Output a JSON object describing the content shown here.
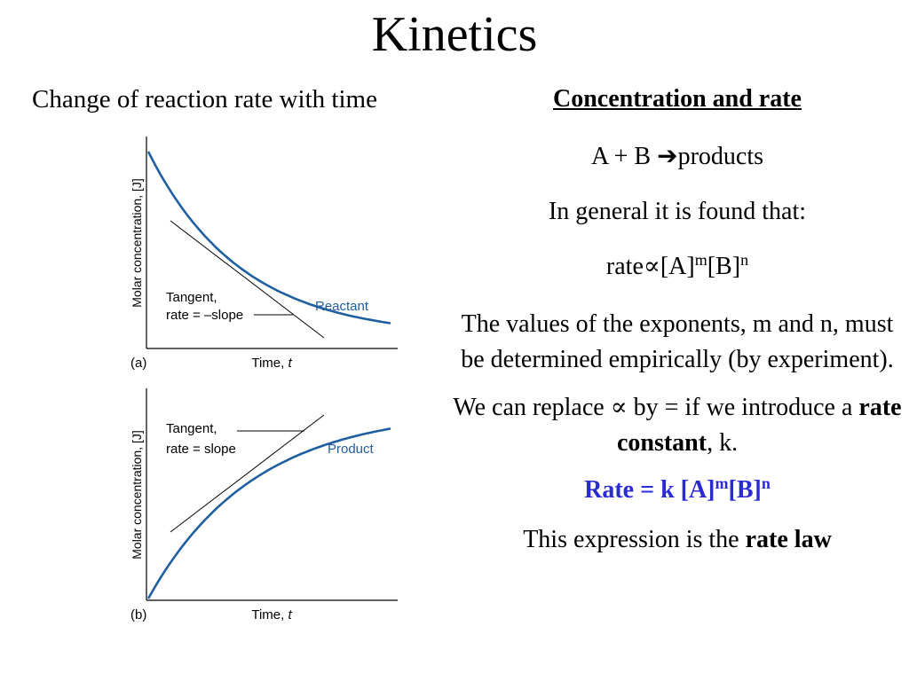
{
  "title": "Kinetics",
  "left": {
    "subtitle": "Change of reaction rate with time"
  },
  "right": {
    "heading": "Concentration and rate",
    "reaction": {
      "lhs": "A + B ",
      "arrow": "➔",
      "rhs": "products"
    },
    "general": "In general it is found that:",
    "proportional": {
      "prefix": "rate",
      "symbol": "∝",
      "a": "[A]",
      "m": "m",
      "b": "[B]",
      "n": "n"
    },
    "exponents": "The values of the exponents, m and n, must be determined empirically (by experiment).",
    "replace": {
      "part1": "We can replace ",
      "symbol": "∝",
      "part2": " by = if we introduce a ",
      "bold": "rate constant",
      "part3": ", k."
    },
    "rate_law": {
      "prefix": "Rate = k [A]",
      "m": "m",
      "b": "[B]",
      "n": "n"
    },
    "closing": {
      "text": "This expression is the ",
      "bold": "rate law"
    }
  },
  "chart_data": [
    {
      "type": "line",
      "panel_label": "(a)",
      "xlabel": "Time, t",
      "xlabel_main": "Time, ",
      "xlabel_var": "t",
      "ylabel": "Molar concentration, [J]",
      "series": [
        {
          "name": "Reactant",
          "color": "#1f5fa0",
          "shape": "exponential-decay"
        }
      ],
      "tangent_label_1": "Tangent,",
      "tangent_label_2": "rate = –slope"
    },
    {
      "type": "line",
      "panel_label": "(b)",
      "xlabel": "Time, t",
      "xlabel_main": "Time, ",
      "xlabel_var": "t",
      "ylabel": "Molar concentration, [J]",
      "series": [
        {
          "name": "Product",
          "color": "#1f5fa0",
          "shape": "exponential-growth"
        }
      ],
      "tangent_label_1": "Tangent,",
      "tangent_label_2": "rate = slope"
    }
  ]
}
